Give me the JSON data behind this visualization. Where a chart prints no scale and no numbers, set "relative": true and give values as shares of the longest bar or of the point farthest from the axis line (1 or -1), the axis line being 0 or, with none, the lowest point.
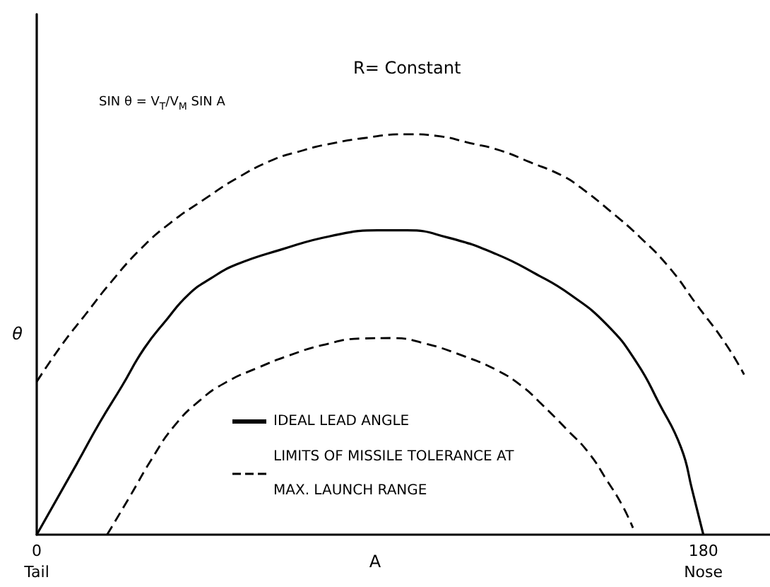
{
  "chart_data": {
    "type": "line",
    "title": "R= Constant",
    "xlabel": "A",
    "ylabel": "θ",
    "annotations": [
      "SIN θ = V$_{T}$/V$_{M}$ SIN A"
    ],
    "relative": true,
    "xlim": [
      0,
      198
    ],
    "xticks": [
      {
        "value": 0,
        "label": "0\nTail"
      },
      {
        "value": 180,
        "label": "180\nNose"
      }
    ],
    "legend": "bottom",
    "marker": "none",
    "series": [
      {
        "name": "IDEAL LEAD ANGLE",
        "color": "#000000",
        "line_style": "solid",
        "x": [
          0,
          11,
          17,
          23,
          29,
          35,
          41,
          47,
          54,
          66,
          79,
          92,
          100,
          111,
          124,
          135,
          144,
          154,
          162,
          168,
          174,
          177,
          180
        ],
        "values": [
          0,
          0.18,
          0.28,
          0.371,
          0.465,
          0.536,
          0.6,
          0.64,
          0.675,
          0.712,
          0.745,
          0.76,
          0.76,
          0.742,
          0.701,
          0.65,
          0.6,
          0.524,
          0.43,
          0.329,
          0.217,
          0.111,
          0
        ]
      },
      {
        "name": "LIMITS OF MISSILE TOLERANCE AT MAX. LAUNCH RANGE",
        "color": "#000000",
        "line_style": "dashed",
        "x": [
          0,
          7,
          13,
          20,
          28,
          36,
          45,
          54,
          64,
          72,
          77,
          88,
          100,
          108,
          117,
          125,
          133,
          142,
          147,
          155,
          163,
          171,
          178,
          186,
          191
        ],
        "values": [
          0.382,
          0.477,
          0.548,
          0.63,
          0.713,
          0.778,
          0.836,
          0.89,
          0.937,
          0.96,
          0.972,
          0.99,
          1,
          0.996,
          0.978,
          0.96,
          0.931,
          0.896,
          0.866,
          0.807,
          0.742,
          0.665,
          0.577,
          0.477,
          0.4
        ]
      },
      {
        "color": "#000000",
        "line_style": "dashed",
        "x": [
          19,
          25,
          31,
          37,
          44,
          51,
          60,
          68,
          77,
          88,
          96,
          105,
          115,
          124,
          131,
          136,
          143,
          149,
          154,
          158,
          161
        ],
        "values": [
          0,
          0.093,
          0.188,
          0.27,
          0.335,
          0.38,
          0.418,
          0.447,
          0.473,
          0.49,
          0.491,
          0.477,
          0.447,
          0.412,
          0.371,
          0.329,
          0.264,
          0.205,
          0.135,
          0.075,
          0.017
        ]
      }
    ]
  }
}
